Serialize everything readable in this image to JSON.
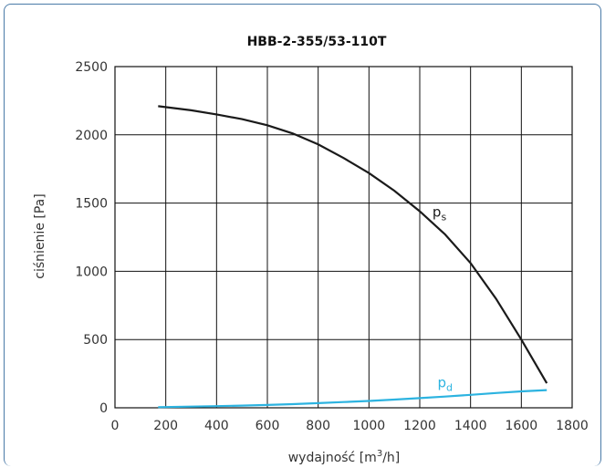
{
  "chart_data": {
    "type": "line",
    "title": "HBB-2-355/53-110T",
    "xlabel": "wydajność [m",
    "xlabel_sup": "3",
    "xlabel_tail": "/h]",
    "ylabel": "ciśnienie [Pa]",
    "xlim": [
      0,
      1800
    ],
    "ylim": [
      0,
      2500
    ],
    "xticks": [
      0,
      200,
      400,
      600,
      800,
      1000,
      1200,
      1400,
      1600,
      1800
    ],
    "yticks": [
      0,
      500,
      1000,
      1500,
      2000,
      2500
    ],
    "grid": true,
    "series": [
      {
        "name": "p",
        "sub": "s",
        "color": "#1a1a1a",
        "x": [
          170,
          300,
          400,
          500,
          600,
          700,
          800,
          900,
          1000,
          1100,
          1200,
          1300,
          1400,
          1500,
          1600,
          1700
        ],
        "y": [
          2210,
          2180,
          2150,
          2115,
          2070,
          2010,
          1930,
          1830,
          1720,
          1590,
          1440,
          1270,
          1060,
          800,
          500,
          180
        ]
      },
      {
        "name": "p",
        "sub": "d",
        "color": "#2cb3e0",
        "x": [
          170,
          300,
          400,
          500,
          600,
          700,
          800,
          900,
          1000,
          1100,
          1200,
          1300,
          1400,
          1500,
          1600,
          1700
        ],
        "y": [
          5,
          9,
          12,
          16,
          21,
          27,
          34,
          42,
          50,
          60,
          71,
          82,
          95,
          108,
          120,
          130
        ]
      }
    ]
  }
}
